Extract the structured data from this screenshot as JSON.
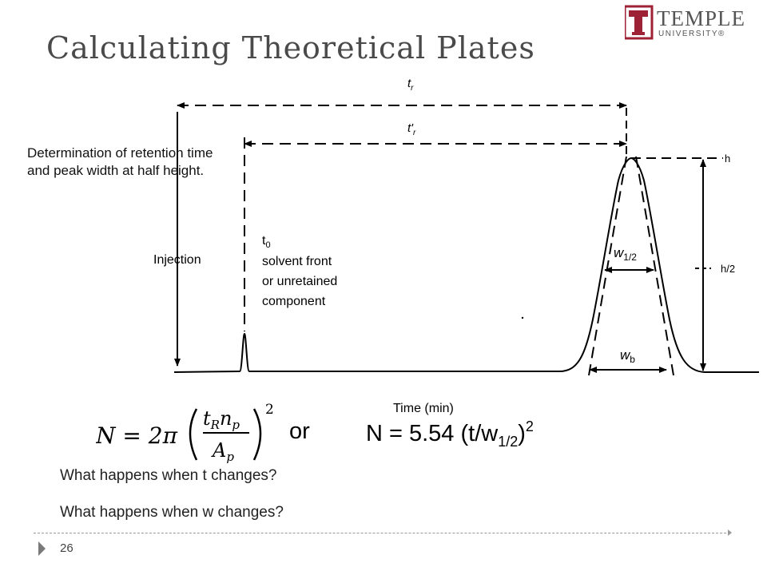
{
  "slide": {
    "title": "Calculating Theoretical Plates",
    "page_number": "26"
  },
  "logo": {
    "word": "TEMPLE",
    "sub": "UNIVERSITY®",
    "color": "#9d2235"
  },
  "diagram": {
    "caption": "Determination of retention time and peak width at half height.",
    "labels": {
      "tr": "t",
      "tr_sub": "r",
      "tr_prime": "t'",
      "tr_prime_sub": "r",
      "injection": "Injection",
      "t0": "t",
      "t0_sub": "0",
      "t0_line1": "solvent front",
      "t0_line2": "or unretained",
      "t0_line3": "component",
      "w_half": "w",
      "w_half_sub": "1/2",
      "w_base": "w",
      "w_base_sub": "b",
      "h": "h",
      "h_half": "h/2",
      "x_axis": "Time (min)"
    }
  },
  "formulas": {
    "n_eq": "N = 2π",
    "numerator": "t",
    "numerator_sub": "R",
    "numerator_n": "n",
    "numerator_n_sub": "p",
    "denominator": "A",
    "denominator_sub": "p",
    "exponent": "2",
    "or_word": "or",
    "eq2_main": "N = 5.54 (t/w",
    "eq2_sub": "1/2",
    "eq2_close": ")",
    "eq2_sup": "2"
  },
  "questions": [
    "What happens when t changes?",
    "What happens when w changes?"
  ]
}
